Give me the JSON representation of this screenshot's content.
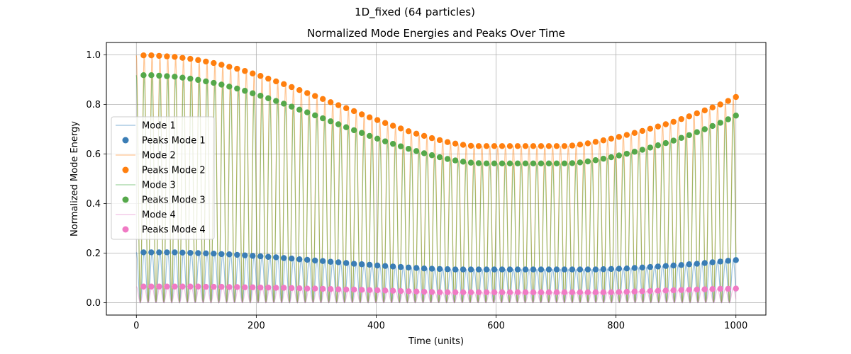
{
  "suptitle": "1D_fixed (64 particles)",
  "chart_data": {
    "type": "line",
    "title": "Normalized Mode Energies and Peaks Over Time",
    "xlabel": "Time (units)",
    "ylabel": "Normalized Mode Energy",
    "xlim": [
      -50,
      1050
    ],
    "ylim": [
      -0.05,
      1.05
    ],
    "xticks": [
      0,
      200,
      400,
      600,
      800,
      1000
    ],
    "yticks": [
      0.0,
      0.2,
      0.4,
      0.6,
      0.8,
      1.0
    ],
    "xtick_labels": [
      "0",
      "200",
      "400",
      "600",
      "800",
      "1000"
    ],
    "ytick_labels": [
      "0.0",
      "0.2",
      "0.4",
      "0.6",
      "0.8",
      "1.0"
    ],
    "grid": true,
    "legend_position": "center-left",
    "oscillation_period": 13.1,
    "peak_times": [
      12,
      25,
      38,
      51,
      64,
      77,
      90,
      103,
      116,
      129,
      142,
      155,
      168,
      181,
      194,
      207,
      220,
      233,
      246,
      259,
      272,
      285,
      298,
      311,
      324,
      337,
      350,
      363,
      376,
      389,
      402,
      415,
      428,
      441,
      454,
      467,
      480,
      493,
      506,
      519,
      532,
      545,
      558,
      571,
      584,
      597,
      610,
      623,
      636,
      649,
      662,
      675,
      688,
      701,
      714,
      727,
      740,
      753,
      766,
      779,
      792,
      805,
      818,
      831,
      844,
      857,
      870,
      883,
      896,
      909,
      922,
      935,
      948,
      961,
      974,
      987,
      1000
    ],
    "series": [
      {
        "name": "Mode 1",
        "peaks_name": "Peaks Mode 1",
        "line_color": "#1f77b4",
        "peak_color": "#3a7db5",
        "peak_values": [
          0.203,
          0.203,
          0.203,
          0.203,
          0.203,
          0.202,
          0.201,
          0.2,
          0.199,
          0.198,
          0.196,
          0.195,
          0.193,
          0.191,
          0.189,
          0.187,
          0.185,
          0.183,
          0.18,
          0.178,
          0.175,
          0.173,
          0.17,
          0.168,
          0.165,
          0.163,
          0.16,
          0.157,
          0.155,
          0.153,
          0.15,
          0.148,
          0.146,
          0.144,
          0.142,
          0.14,
          0.138,
          0.137,
          0.136,
          0.135,
          0.134,
          0.134,
          0.134,
          0.134,
          0.134,
          0.134,
          0.134,
          0.134,
          0.134,
          0.134,
          0.134,
          0.134,
          0.134,
          0.134,
          0.134,
          0.134,
          0.134,
          0.134,
          0.134,
          0.135,
          0.136,
          0.137,
          0.138,
          0.14,
          0.142,
          0.144,
          0.146,
          0.148,
          0.15,
          0.152,
          0.155,
          0.157,
          0.16,
          0.163,
          0.166,
          0.169,
          0.172
        ]
      },
      {
        "name": "Mode 2",
        "peaks_name": "Peaks Mode 2",
        "line_color": "#ff7f0e",
        "peak_color": "#ff7f0e",
        "peak_values": [
          0.998,
          0.998,
          0.996,
          0.994,
          0.992,
          0.988,
          0.984,
          0.979,
          0.973,
          0.967,
          0.96,
          0.952,
          0.944,
          0.935,
          0.925,
          0.915,
          0.904,
          0.893,
          0.882,
          0.87,
          0.858,
          0.846,
          0.834,
          0.822,
          0.809,
          0.797,
          0.785,
          0.773,
          0.76,
          0.748,
          0.737,
          0.725,
          0.714,
          0.703,
          0.692,
          0.682,
          0.673,
          0.664,
          0.656,
          0.648,
          0.642,
          0.637,
          0.633,
          0.632,
          0.632,
          0.632,
          0.632,
          0.632,
          0.632,
          0.632,
          0.632,
          0.632,
          0.632,
          0.632,
          0.632,
          0.634,
          0.638,
          0.643,
          0.649,
          0.655,
          0.662,
          0.669,
          0.677,
          0.685,
          0.693,
          0.702,
          0.711,
          0.72,
          0.73,
          0.741,
          0.752,
          0.764,
          0.776,
          0.788,
          0.8,
          0.814,
          0.83
        ]
      },
      {
        "name": "Mode 3",
        "peaks_name": "Peaks Mode 3",
        "line_color": "#2ca02c",
        "peak_color": "#55a84a",
        "peak_values": [
          0.918,
          0.918,
          0.916,
          0.914,
          0.912,
          0.908,
          0.904,
          0.899,
          0.893,
          0.887,
          0.88,
          0.872,
          0.864,
          0.855,
          0.845,
          0.835,
          0.825,
          0.814,
          0.803,
          0.791,
          0.779,
          0.768,
          0.756,
          0.744,
          0.732,
          0.72,
          0.708,
          0.696,
          0.685,
          0.673,
          0.662,
          0.651,
          0.641,
          0.631,
          0.621,
          0.612,
          0.603,
          0.595,
          0.587,
          0.58,
          0.574,
          0.569,
          0.565,
          0.563,
          0.562,
          0.562,
          0.562,
          0.562,
          0.562,
          0.562,
          0.562,
          0.562,
          0.562,
          0.562,
          0.562,
          0.563,
          0.566,
          0.57,
          0.575,
          0.581,
          0.587,
          0.594,
          0.601,
          0.609,
          0.617,
          0.626,
          0.635,
          0.644,
          0.654,
          0.665,
          0.676,
          0.688,
          0.7,
          0.713,
          0.726,
          0.74,
          0.755
        ]
      },
      {
        "name": "Mode 4",
        "peaks_name": "Peaks Mode 4",
        "line_color": "#e377c2",
        "peak_color": "#f07ac4",
        "peak_values": [
          0.065,
          0.065,
          0.065,
          0.065,
          0.065,
          0.065,
          0.065,
          0.065,
          0.064,
          0.064,
          0.064,
          0.063,
          0.063,
          0.062,
          0.062,
          0.061,
          0.061,
          0.06,
          0.06,
          0.059,
          0.058,
          0.057,
          0.057,
          0.056,
          0.055,
          0.054,
          0.053,
          0.053,
          0.052,
          0.051,
          0.05,
          0.049,
          0.048,
          0.047,
          0.046,
          0.045,
          0.044,
          0.043,
          0.042,
          0.042,
          0.042,
          0.042,
          0.042,
          0.042,
          0.042,
          0.042,
          0.042,
          0.042,
          0.042,
          0.042,
          0.042,
          0.042,
          0.042,
          0.042,
          0.042,
          0.042,
          0.042,
          0.042,
          0.042,
          0.042,
          0.042,
          0.043,
          0.044,
          0.045,
          0.046,
          0.047,
          0.048,
          0.049,
          0.05,
          0.051,
          0.052,
          0.053,
          0.054,
          0.055,
          0.056,
          0.056,
          0.057
        ]
      }
    ]
  }
}
